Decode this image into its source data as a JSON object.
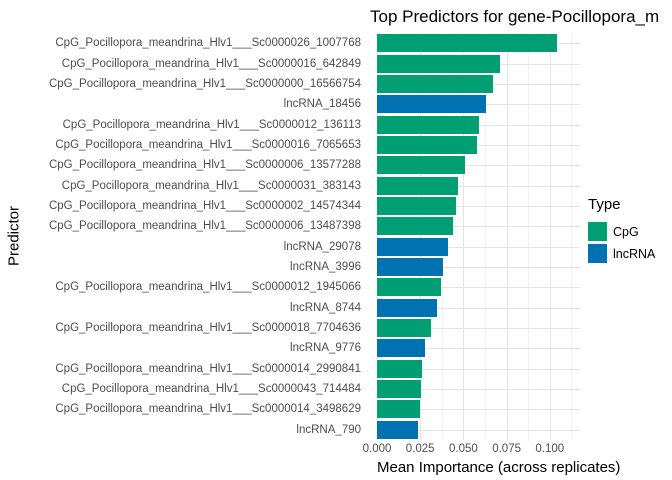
{
  "title": "Top Predictors for gene-Pocillopora_m",
  "colors": {
    "cpg": "#009E73",
    "lncrna": "#0072B2",
    "axis_text": "#4D4D4D",
    "grid_major": "#E4E4E4",
    "grid_minor": "#F2F2F2",
    "title_text": "#000000"
  },
  "chart_data": {
    "type": "bar",
    "orientation": "horizontal",
    "title": "Top Predictors for gene-Pocillopora_m",
    "xlabel": "Mean Importance (across replicates)",
    "ylabel": "Predictor",
    "xlim": [
      0,
      0.1175
    ],
    "x_ticks": [
      0,
      0.025,
      0.05,
      0.075,
      0.1
    ],
    "x_tick_labels": [
      "0.000",
      "0.025",
      "0.050",
      "0.075",
      "0.100"
    ],
    "x_minor_ticks": [
      0.0125,
      0.0375,
      0.0625,
      0.0875,
      0.1125
    ],
    "grid": "major+minor",
    "legend": {
      "title": "Type",
      "position": "right",
      "items": [
        {
          "label": "CpG",
          "color": "#009E73"
        },
        {
          "label": "lncRNA",
          "color": "#0072B2"
        }
      ]
    },
    "bars": [
      {
        "label": "CpG_Pocillopora_meandrina_Hlv1___Sc0000026_1007768",
        "type": "CpG",
        "value": 0.104
      },
      {
        "label": "CpG_Pocillopora_meandrina_Hlv1___Sc0000016_642849",
        "type": "CpG",
        "value": 0.071
      },
      {
        "label": "CpG_Pocillopora_meandrina_Hlv1___Sc0000000_16566754",
        "type": "CpG",
        "value": 0.067
      },
      {
        "label": "lncRNA_18456",
        "type": "lncRNA",
        "value": 0.063
      },
      {
        "label": "CpG_Pocillopora_meandrina_Hlv1___Sc0000012_136113",
        "type": "CpG",
        "value": 0.059
      },
      {
        "label": "CpG_Pocillopora_meandrina_Hlv1___Sc0000016_7065653",
        "type": "CpG",
        "value": 0.058
      },
      {
        "label": "CpG_Pocillopora_meandrina_Hlv1___Sc0000006_13577288",
        "type": "CpG",
        "value": 0.051
      },
      {
        "label": "CpG_Pocillopora_meandrina_Hlv1___Sc0000031_383143",
        "type": "CpG",
        "value": 0.047
      },
      {
        "label": "CpG_Pocillopora_meandrina_Hlv1___Sc0000002_14574344",
        "type": "CpG",
        "value": 0.046
      },
      {
        "label": "CpG_Pocillopora_meandrina_Hlv1___Sc0000006_13487398",
        "type": "CpG",
        "value": 0.044
      },
      {
        "label": "lncRNA_29078",
        "type": "lncRNA",
        "value": 0.041
      },
      {
        "label": "lncRNA_3996",
        "type": "lncRNA",
        "value": 0.038
      },
      {
        "label": "CpG_Pocillopora_meandrina_Hlv1___Sc0000012_1945066",
        "type": "CpG",
        "value": 0.037
      },
      {
        "label": "lncRNA_8744",
        "type": "lncRNA",
        "value": 0.035
      },
      {
        "label": "CpG_Pocillopora_meandrina_Hlv1___Sc0000018_7704636",
        "type": "CpG",
        "value": 0.031
      },
      {
        "label": "lncRNA_9776",
        "type": "lncRNA",
        "value": 0.028
      },
      {
        "label": "CpG_Pocillopora_meandrina_Hlv1___Sc0000014_2990841",
        "type": "CpG",
        "value": 0.026
      },
      {
        "label": "CpG_Pocillopora_meandrina_Hlv1___Sc0000043_714484",
        "type": "CpG",
        "value": 0.0255
      },
      {
        "label": "CpG_Pocillopora_meandrina_Hlv1___Sc0000014_3498629",
        "type": "CpG",
        "value": 0.025
      },
      {
        "label": "lncRNA_790",
        "type": "lncRNA",
        "value": 0.024
      }
    ]
  }
}
